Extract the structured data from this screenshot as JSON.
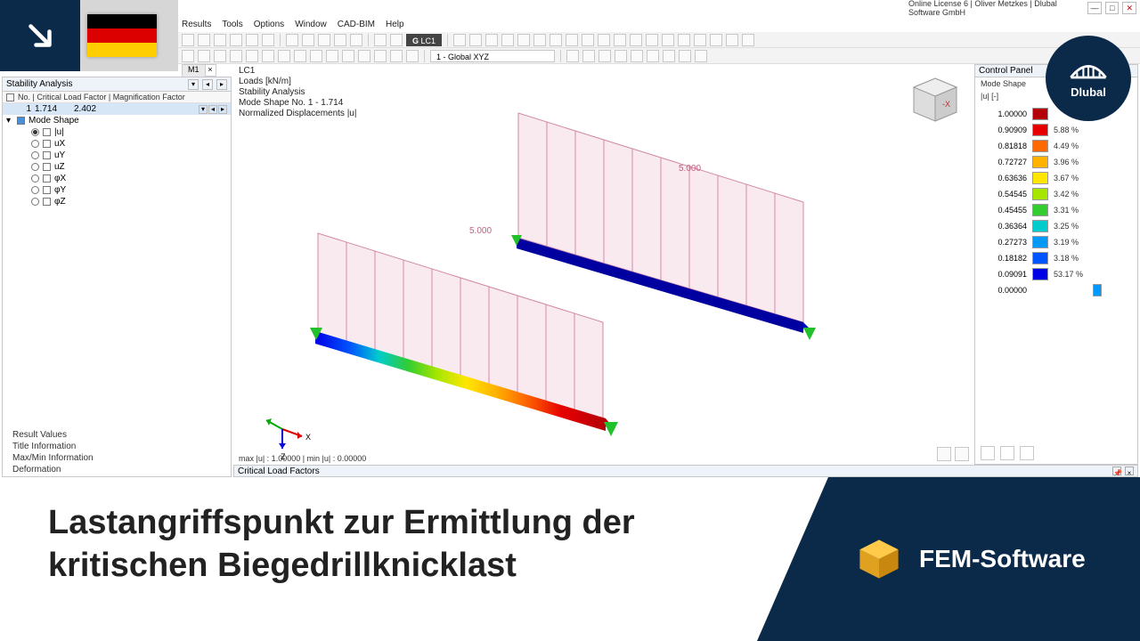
{
  "window": {
    "license_text": "Online License 6 | Oliver Metzkes | Dlubal Software GmbH",
    "min": "—",
    "max": "□",
    "close": "✕"
  },
  "menu": {
    "items": [
      "Results",
      "Tools",
      "Options",
      "Window",
      "CAD-BIM",
      "Help"
    ]
  },
  "toolbar": {
    "lc_label": "LC1",
    "coord_label": "1 - Global XYZ"
  },
  "doc_tab": {
    "label": "M1",
    "close": "×"
  },
  "left": {
    "title": "Stability Analysis",
    "col_header": "No. | Critical Load Factor | Magnification Factor",
    "row": {
      "no": "1",
      "clf": "1.714",
      "mf": "2.402"
    },
    "mode_shape_label": "Mode Shape",
    "components": [
      "|u|",
      "uX",
      "uY",
      "uZ",
      "φX",
      "φY",
      "φZ"
    ],
    "checks": [
      "Result Values",
      "Title Information",
      "Max/Min Information",
      "Deformation"
    ]
  },
  "viewport": {
    "lines": [
      "LC1",
      "Loads [kN/m]",
      "Stability Analysis",
      "Mode Shape No. 1 - 1.714",
      "Normalized Displacements |u|"
    ],
    "dim1": "5.000",
    "dim2": "5.000",
    "axis_x": "X",
    "axis_z": "Z",
    "footer": "max |u| : 1.00000 | min |u| : 0.00000"
  },
  "nav_cube": {
    "x": "-X"
  },
  "ctrl": {
    "title": "Control Panel",
    "sub1": "Mode Shape",
    "sub2": "|u| [-]",
    "legend": [
      {
        "v": "1.00000",
        "c": "#b3000a",
        "p": ""
      },
      {
        "v": "0.90909",
        "c": "#e60000",
        "p": "5.88 %"
      },
      {
        "v": "0.81818",
        "c": "#ff6a00",
        "p": "4.49 %"
      },
      {
        "v": "0.72727",
        "c": "#ffb300",
        "p": "3.96 %"
      },
      {
        "v": "0.63636",
        "c": "#ffe600",
        "p": "3.67 %"
      },
      {
        "v": "0.54545",
        "c": "#a6e600",
        "p": "3.42 %"
      },
      {
        "v": "0.45455",
        "c": "#33cc33",
        "p": "3.31 %"
      },
      {
        "v": "0.36364",
        "c": "#00cccc",
        "p": "3.25 %"
      },
      {
        "v": "0.27273",
        "c": "#0099ff",
        "p": "3.19 %"
      },
      {
        "v": "0.18182",
        "c": "#0055ff",
        "p": "3.18 %"
      },
      {
        "v": "0.09091",
        "c": "#0000e6",
        "p": "53.17 %"
      },
      {
        "v": "0.00000",
        "c": "",
        "p": ""
      }
    ],
    "tail_swatch": "#0099ff"
  },
  "bottom": {
    "title": "Critical Load Factors"
  },
  "flag": {
    "c1": "#000000",
    "c2": "#dd0000",
    "c3": "#ffce00"
  },
  "dlubal": {
    "name": "Dlubal"
  },
  "banner": {
    "title_l1": "Lastangriffspunkt zur Ermittlung der",
    "title_l2": "kritischen Biegedrillknicklast",
    "right": "FEM-Software",
    "cube_top": "#ffc94a",
    "cube_left": "#e0a020",
    "cube_right": "#c88810"
  }
}
